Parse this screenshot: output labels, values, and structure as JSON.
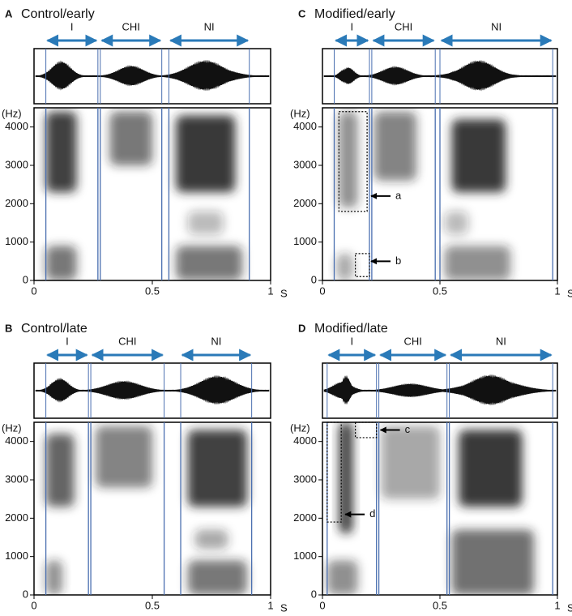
{
  "chart_data": [
    {
      "type": "spectrogram",
      "panel": "A",
      "title": "Control/early",
      "xlabel": "S",
      "ylabel": "(Hz)",
      "xlim": [
        0,
        1
      ],
      "xticks": [
        0,
        0.5,
        1
      ],
      "ylim": [
        0,
        4500
      ],
      "yticks": [
        0,
        1000,
        2000,
        3000,
        4000
      ],
      "segments": [
        {
          "name": "I",
          "start": 0.05,
          "end": 0.27
        },
        {
          "name": "CHI",
          "start": 0.28,
          "end": 0.54
        },
        {
          "name": "NI",
          "start": 0.57,
          "end": 0.91
        }
      ],
      "energy": [
        {
          "x": [
            0.05,
            0.18
          ],
          "y": [
            2300,
            4400
          ],
          "level": 0.85
        },
        {
          "x": [
            0.05,
            0.18
          ],
          "y": [
            0,
            900
          ],
          "level": 0.6
        },
        {
          "x": [
            0.32,
            0.5
          ],
          "y": [
            3000,
            4400
          ],
          "level": 0.6
        },
        {
          "x": [
            0.6,
            0.85
          ],
          "y": [
            2300,
            4300
          ],
          "level": 0.9
        },
        {
          "x": [
            0.6,
            0.88
          ],
          "y": [
            0,
            900
          ],
          "level": 0.6
        },
        {
          "x": [
            0.65,
            0.8
          ],
          "y": [
            1200,
            1800
          ],
          "level": 0.3
        }
      ],
      "boxes": [],
      "annotations": []
    },
    {
      "type": "spectrogram",
      "panel": "C",
      "title": "Modified/early",
      "xlabel": "S",
      "ylabel": "(Hz)",
      "xlim": [
        0,
        1
      ],
      "xticks": [
        0,
        0.5,
        1
      ],
      "ylim": [
        0,
        4500
      ],
      "yticks": [
        0,
        1000,
        2000,
        3000,
        4000
      ],
      "segments": [
        {
          "name": "I",
          "start": 0.05,
          "end": 0.2
        },
        {
          "name": "CHI",
          "start": 0.21,
          "end": 0.48
        },
        {
          "name": "NI",
          "start": 0.5,
          "end": 0.98
        }
      ],
      "energy": [
        {
          "x": [
            0.07,
            0.15
          ],
          "y": [
            1900,
            4400
          ],
          "level": 0.5
        },
        {
          "x": [
            0.06,
            0.13
          ],
          "y": [
            0,
            700
          ],
          "level": 0.4
        },
        {
          "x": [
            0.22,
            0.4
          ],
          "y": [
            2600,
            4400
          ],
          "level": 0.55
        },
        {
          "x": [
            0.55,
            0.78
          ],
          "y": [
            2300,
            4200
          ],
          "level": 0.9
        },
        {
          "x": [
            0.52,
            0.8
          ],
          "y": [
            0,
            900
          ],
          "level": 0.5
        },
        {
          "x": [
            0.52,
            0.62
          ],
          "y": [
            1200,
            1800
          ],
          "level": 0.3
        }
      ],
      "boxes": [
        {
          "x": [
            0.07,
            0.19
          ],
          "y": [
            1800,
            4400
          ]
        },
        {
          "x": [
            0.14,
            0.2
          ],
          "y": [
            100,
            700
          ]
        }
      ],
      "annotations": [
        {
          "label": "a",
          "x": 0.2,
          "y": 2200
        },
        {
          "label": "b",
          "x": 0.2,
          "y": 500
        }
      ]
    },
    {
      "type": "spectrogram",
      "panel": "B",
      "title": "Control/late",
      "xlabel": "S",
      "ylabel": "(Hz)",
      "xlim": [
        0,
        1
      ],
      "xticks": [
        0,
        0.5,
        1
      ],
      "ylim": [
        0,
        4500
      ],
      "yticks": [
        0,
        1000,
        2000,
        3000,
        4000
      ],
      "segments": [
        {
          "name": "I",
          "start": 0.05,
          "end": 0.23
        },
        {
          "name": "CHI",
          "start": 0.24,
          "end": 0.55
        },
        {
          "name": "NI",
          "start": 0.62,
          "end": 0.92
        }
      ],
      "energy": [
        {
          "x": [
            0.05,
            0.17
          ],
          "y": [
            2300,
            4200
          ],
          "level": 0.7
        },
        {
          "x": [
            0.05,
            0.12
          ],
          "y": [
            0,
            900
          ],
          "level": 0.5
        },
        {
          "x": [
            0.26,
            0.5
          ],
          "y": [
            2800,
            4400
          ],
          "level": 0.55
        },
        {
          "x": [
            0.65,
            0.9
          ],
          "y": [
            2300,
            4300
          ],
          "level": 0.85
        },
        {
          "x": [
            0.65,
            0.9
          ],
          "y": [
            0,
            900
          ],
          "level": 0.6
        },
        {
          "x": [
            0.68,
            0.82
          ],
          "y": [
            1200,
            1700
          ],
          "level": 0.4
        }
      ],
      "boxes": [],
      "annotations": []
    },
    {
      "type": "spectrogram",
      "panel": "D",
      "title": "Modified/late",
      "xlabel": "S",
      "ylabel": "(Hz)",
      "xlim": [
        0,
        1
      ],
      "xticks": [
        0,
        0.5,
        1
      ],
      "ylim": [
        0,
        4500
      ],
      "yticks": [
        0,
        1000,
        2000,
        3000,
        4000
      ],
      "segments": [
        {
          "name": "I",
          "start": 0.02,
          "end": 0.23
        },
        {
          "name": "CHI",
          "start": 0.24,
          "end": 0.53
        },
        {
          "name": "NI",
          "start": 0.54,
          "end": 0.98
        }
      ],
      "energy": [
        {
          "x": [
            0.07,
            0.13
          ],
          "y": [
            1600,
            4500
          ],
          "level": 0.85
        },
        {
          "x": [
            0.02,
            0.15
          ],
          "y": [
            0,
            900
          ],
          "level": 0.5
        },
        {
          "x": [
            0.25,
            0.5
          ],
          "y": [
            2500,
            4400
          ],
          "level": 0.4
        },
        {
          "x": [
            0.58,
            0.85
          ],
          "y": [
            2300,
            4300
          ],
          "level": 0.9
        },
        {
          "x": [
            0.55,
            0.9
          ],
          "y": [
            0,
            1700
          ],
          "level": 0.65
        }
      ],
      "boxes": [
        {
          "x": [
            0.14,
            0.23
          ],
          "y": [
            4100,
            4500
          ]
        },
        {
          "x": [
            0.02,
            0.08
          ],
          "y": [
            1900,
            4500
          ]
        }
      ],
      "annotations": [
        {
          "label": "c",
          "x": 0.24,
          "y": 4300
        },
        {
          "label": "d",
          "x": 0.09,
          "y": 2100
        }
      ]
    }
  ]
}
